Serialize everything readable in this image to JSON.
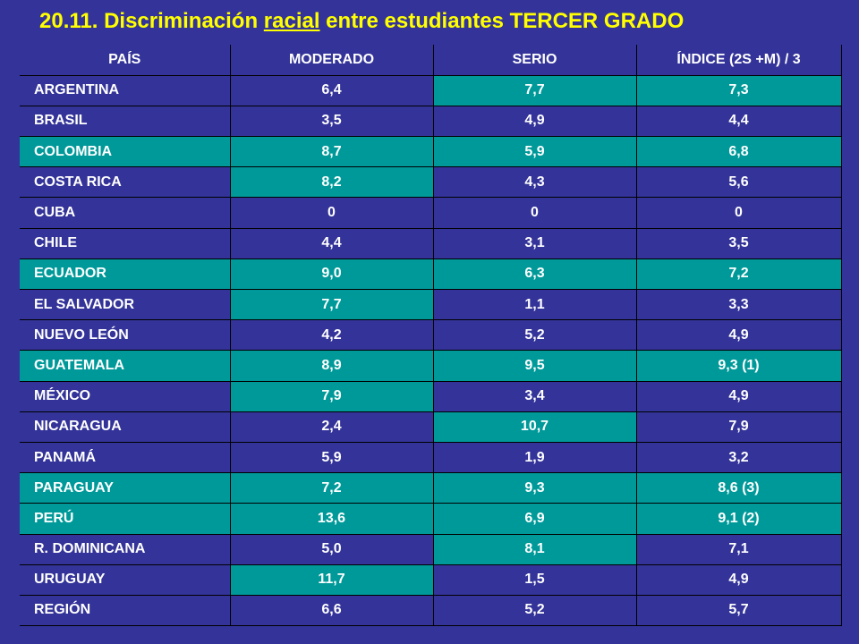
{
  "title": {
    "prefix": "20.11. Discriminación ",
    "underlined": "racial",
    "suffix": " entre estudiantes TERCER GRADO"
  },
  "colors": {
    "background": "#333399",
    "title": "#FFFF00",
    "highlight": "#009999",
    "text": "#FFFFFF"
  },
  "table": {
    "headers": [
      "PAÍS",
      "MODERADO",
      "SERIO",
      "ÍNDICE (2S +M) / 3"
    ],
    "rows": [
      {
        "cells": [
          "ARGENTINA",
          "6,4",
          "7,7",
          "7,3"
        ],
        "highlight": [
          false,
          false,
          true,
          true
        ]
      },
      {
        "cells": [
          "BRASIL",
          "3,5",
          "4,9",
          "4,4"
        ],
        "highlight": [
          false,
          false,
          false,
          false
        ]
      },
      {
        "cells": [
          "COLOMBIA",
          "8,7",
          "5,9",
          "6,8"
        ],
        "highlight": [
          true,
          true,
          true,
          true
        ]
      },
      {
        "cells": [
          "COSTA RICA",
          "8,2",
          "4,3",
          "5,6"
        ],
        "highlight": [
          false,
          true,
          false,
          false
        ]
      },
      {
        "cells": [
          "CUBA",
          "0",
          "0",
          "0"
        ],
        "highlight": [
          false,
          false,
          false,
          false
        ]
      },
      {
        "cells": [
          "CHILE",
          "4,4",
          "3,1",
          "3,5"
        ],
        "highlight": [
          false,
          false,
          false,
          false
        ]
      },
      {
        "cells": [
          "ECUADOR",
          "9,0",
          "6,3",
          "7,2"
        ],
        "highlight": [
          true,
          true,
          true,
          true
        ]
      },
      {
        "cells": [
          "EL SALVADOR",
          "7,7",
          "1,1",
          "3,3"
        ],
        "highlight": [
          false,
          true,
          false,
          false
        ]
      },
      {
        "cells": [
          "NUEVO LEÓN",
          "4,2",
          "5,2",
          "4,9"
        ],
        "highlight": [
          false,
          false,
          false,
          false
        ]
      },
      {
        "cells": [
          "GUATEMALA",
          "8,9",
          "9,5",
          "9,3 (1)"
        ],
        "highlight": [
          true,
          true,
          true,
          true
        ]
      },
      {
        "cells": [
          "MÉXICO",
          "7,9",
          "3,4",
          "4,9"
        ],
        "highlight": [
          false,
          true,
          false,
          false
        ]
      },
      {
        "cells": [
          "NICARAGUA",
          "2,4",
          "10,7",
          "7,9"
        ],
        "highlight": [
          false,
          false,
          true,
          false
        ]
      },
      {
        "cells": [
          "PANAMÁ",
          "5,9",
          "1,9",
          "3,2"
        ],
        "highlight": [
          false,
          false,
          false,
          false
        ]
      },
      {
        "cells": [
          "PARAGUAY",
          "7,2",
          "9,3",
          "8,6 (3)"
        ],
        "highlight": [
          true,
          true,
          true,
          true
        ]
      },
      {
        "cells": [
          "PERÚ",
          "13,6",
          "6,9",
          "9,1 (2)"
        ],
        "highlight": [
          true,
          true,
          true,
          true
        ]
      },
      {
        "cells": [
          "R. DOMINICANA",
          "5,0",
          "8,1",
          "7,1"
        ],
        "highlight": [
          false,
          false,
          true,
          false
        ]
      },
      {
        "cells": [
          "URUGUAY",
          "11,7",
          "1,5",
          "4,9"
        ],
        "highlight": [
          false,
          true,
          false,
          false
        ]
      },
      {
        "cells": [
          "REGIÓN",
          "6,6",
          "5,2",
          "5,7"
        ],
        "highlight": [
          false,
          false,
          false,
          false
        ]
      }
    ]
  }
}
